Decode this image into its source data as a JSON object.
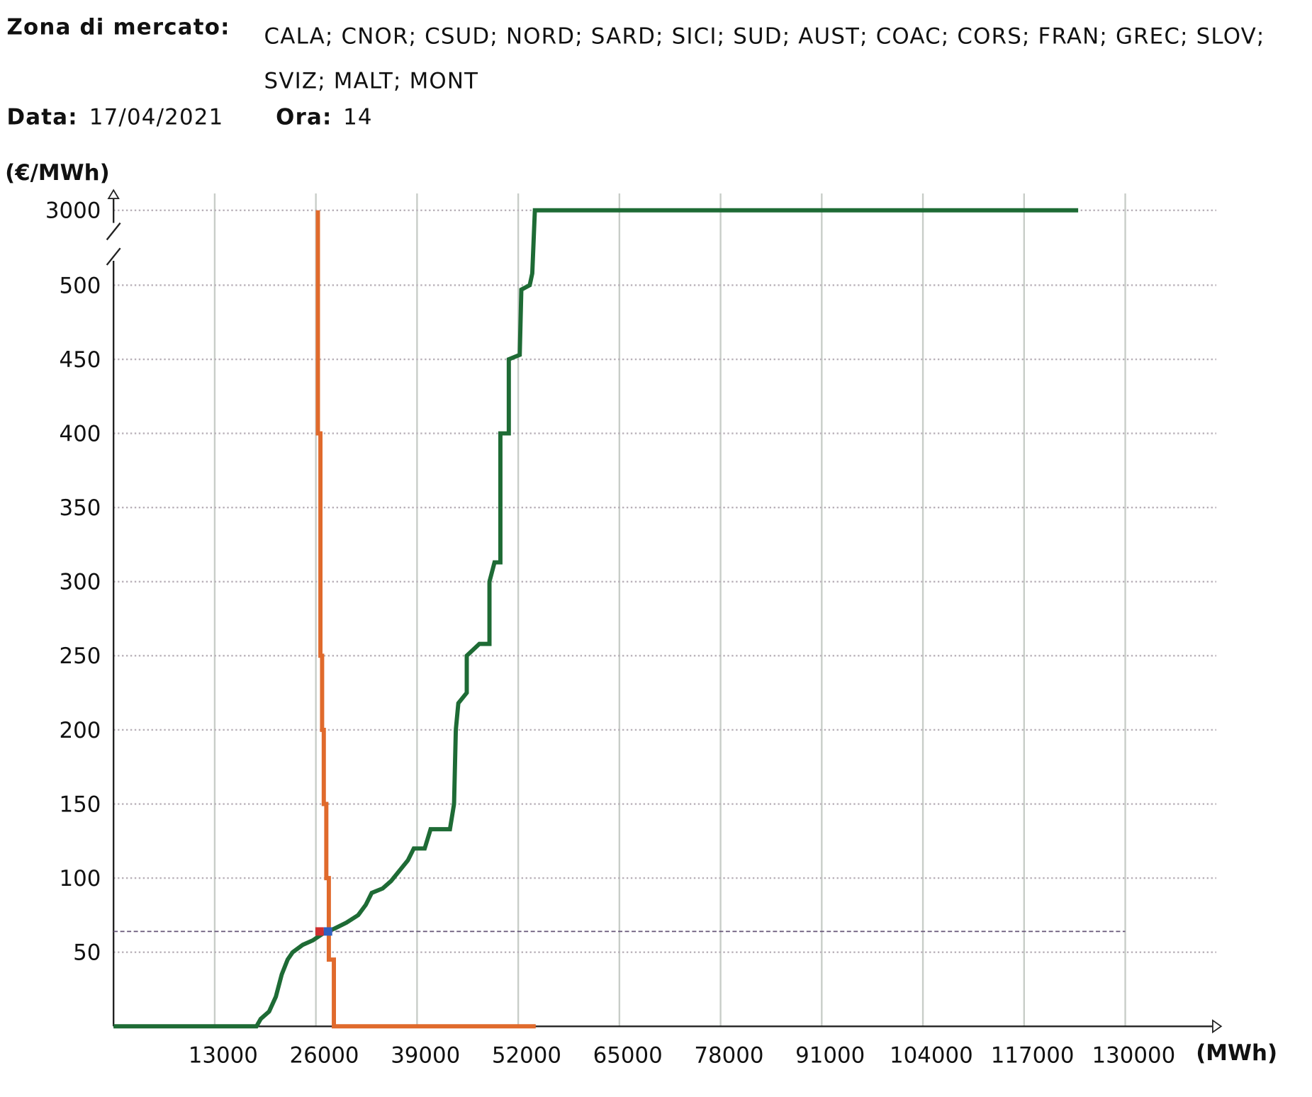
{
  "header": {
    "zone_label": "Zona di mercato:",
    "zones": "CALA; CNOR; CSUD; NORD; SARD; SICI; SUD; AUST; COAC; CORS; FRAN; GREC; SLOV; SVIZ; MALT; MONT",
    "date_label": "Data:",
    "date": "17/04/2021",
    "hour_label": "Ora:",
    "hour": "14"
  },
  "chart_data": {
    "type": "line",
    "ylabel": "(€/MWh)",
    "xlabel": "(MWh)",
    "xlim": [
      0,
      141700
    ],
    "ylim": [
      0,
      3000
    ],
    "axis_break": 500,
    "xticks": [
      13000,
      26000,
      39000,
      52000,
      65000,
      78000,
      91000,
      104000,
      117000,
      130000
    ],
    "yticks": [
      50,
      100,
      150,
      200,
      250,
      300,
      350,
      400,
      450,
      500,
      3000
    ],
    "grid": true,
    "series": [
      {
        "color": "#e06a2c",
        "x": [
          26260,
          26260,
          26580,
          26580,
          26800,
          26800,
          27020,
          27020,
          27340,
          27340,
          27660,
          27660,
          28310,
          28310,
          54250
        ],
        "values": [
          3000,
          400,
          400,
          250,
          250,
          200,
          200,
          150,
          150,
          100,
          100,
          45,
          45,
          0,
          0
        ]
      },
      {
        "color": "#1e6b35",
        "x": [
          0,
          18370,
          18910,
          19990,
          20860,
          21610,
          22370,
          23020,
          24310,
          25610,
          27020,
          28420,
          29930,
          31440,
          32420,
          33170,
          34580,
          35660,
          36740,
          37820,
          38580,
          39980,
          40740,
          43220,
          43760,
          43980,
          44310,
          45390,
          45390,
          47010,
          48300,
          48300,
          48950,
          49710,
          49710,
          50790,
          50790,
          52190,
          52400,
          53480,
          53810,
          54140,
          123950
        ],
        "values": [
          0,
          0,
          5,
          10,
          20,
          35,
          45,
          50,
          55,
          58,
          63,
          66,
          70,
          75,
          82,
          90,
          93,
          98,
          105,
          112,
          120,
          120,
          133,
          133,
          150,
          200,
          218,
          225,
          250,
          258,
          258,
          300,
          313,
          313,
          400,
          400,
          450,
          453,
          497,
          500,
          893,
          3000,
          3000
        ]
      }
    ],
    "reference_line": {
      "y": 64,
      "x_end": 130000,
      "color": "#665577"
    },
    "markers": [
      {
        "color": "#d03030",
        "x": 26480,
        "y": 64
      },
      {
        "color": "#3060c0",
        "x": 27560,
        "y": 64
      }
    ]
  }
}
